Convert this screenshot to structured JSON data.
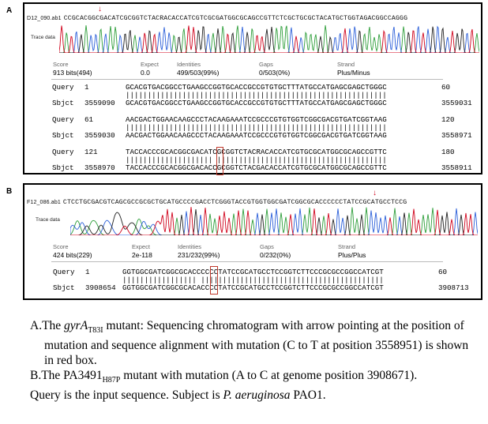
{
  "panelA": {
    "letter": "A",
    "filename": "D12_090.ab1",
    "header_seq": "CCGCACGGCGACATCGCGGTCTACRACACCATCGTCGCGATGGCGCAGCCGTTCTCGCTGCGCTACATGCTGGTAGACGGCCAGGG",
    "trace_label": "Trace data",
    "stats": {
      "score_label": "Score",
      "score": "913 bits(494)",
      "expect_label": "Expect",
      "expect": "0.0",
      "identities_label": "Identities",
      "identities": "499/503(99%)",
      "gaps_label": "Gaps",
      "gaps": "0/503(0%)",
      "strand_label": "Strand",
      "strand": "Plus/Minus"
    },
    "alignment": [
      {
        "q_label": "Query",
        "q_start": "1",
        "q_seq": "GCACGTGACGGCCTGAAGCCGGTGCACCGCCGTGTGCTTTATGCCATGAGCGAGCTGGGC",
        "q_end": "60",
        "bars": "||||||||||||||||||||||||||||||||||||||||||||||||||||||||||||",
        "s_label": "Sbjct",
        "s_start": "3559090",
        "s_seq": "GCACGTGACGGCCTGAAGCCGGTGCACCGCCGTGTGCTTTATGCCATGAGCGAGCTGGGC",
        "s_end": "3559031"
      },
      {
        "q_label": "Query",
        "q_start": "61",
        "q_seq": "AACGACTGGAACAAGCCCTACAAGAAATCCGCCCGTGTGGTCGGCGACGTGATCGGTAAG",
        "q_end": "120",
        "bars": "||||||||||||||||||||||||||||||||||||||||||||||||||||||||||||",
        "s_label": "Sbjct",
        "s_start": "3559030",
        "s_seq": "AACGACTGGAACAAGCCCTACAAGAAATCCGCCCGTGTGGTCGGCGACGTGATCGGTAAG",
        "s_end": "3558971"
      },
      {
        "q_label": "Query",
        "q_start": "121",
        "q_seq": "TACCACCCGCACGGCGACATCGCGGTCTACRACACCATCGTGCGCATGGCGCAGCCGTTC",
        "q_end": "180",
        "bars": "|||||||||||||||||||| |||||||||||||||||||||||||||||||||||||||",
        "s_label": "Sbjct",
        "s_start": "3558970",
        "s_seq": "TACCACCCGCACGGCGACACCGCGGTCTACGACACCATCGTGCGCATGGCGCAGCCGTTC",
        "s_end": "3558911"
      }
    ]
  },
  "panelB": {
    "letter": "B",
    "filename": "F12_086.ab1",
    "header_seq": "CTCCTGCGACGTCAGCGCCGCGCTGCATGCCCCGACCTCGGGTACCGTGGTGGCGATCGGCGCACCCCCCTATCCGCATGCCTCCG",
    "trace_label": "Trace data",
    "stats": {
      "score_label": "Score",
      "score": "424 bits(229)",
      "expect_label": "Expect",
      "expect": "2e-118",
      "identities_label": "Identities",
      "identities": "231/232(99%)",
      "gaps_label": "Gaps",
      "gaps": "0/232(0%)",
      "strand_label": "Strand",
      "strand": "Plus/Plus"
    },
    "alignment": [
      {
        "q_label": "Query",
        "q_start": "1",
        "q_seq": "GGTGGCGATCGGCGCACCCCCCTATCCGCATGCCTCCGGTCTTCCCGCGCCGGCCATCGT",
        "q_end": "60",
        "bars": "||||||||||||||||| ||||||||||||||||||||||||||||||||||||||||||",
        "s_label": "Sbjct",
        "s_start": "3908654",
        "s_seq": "GGTGGCGATCGGCGCACACCCCTATCCGCATGCCTCCGGTCTTCCCGCGCCGGCCATCGT",
        "s_end": "3908713"
      }
    ]
  },
  "caption": {
    "a_prefix": "A.The ",
    "a_gene": "gyrA",
    "a_sub": "T83I",
    "a_rest": " mutant: Sequencing chromatogram with arrow pointing at the position of mutation and sequence alignment with mutation (C to T at position 3558951) is shown in red box.",
    "b_prefix": "B.The PA3491",
    "b_sub": "H87P",
    "b_rest": " mutant with mutation (A to C at genome position 3908671).",
    "c_prefix": "Query is the input sequence. Subject is ",
    "c_species": "P. aeruginosa",
    "c_rest": " PAO1."
  },
  "colors": {
    "trace_green": "#2e9e3a",
    "trace_blue": "#2b5fd9",
    "trace_black": "#222222",
    "trace_red": "#d0021b",
    "mutation_box": "#c0392b"
  }
}
